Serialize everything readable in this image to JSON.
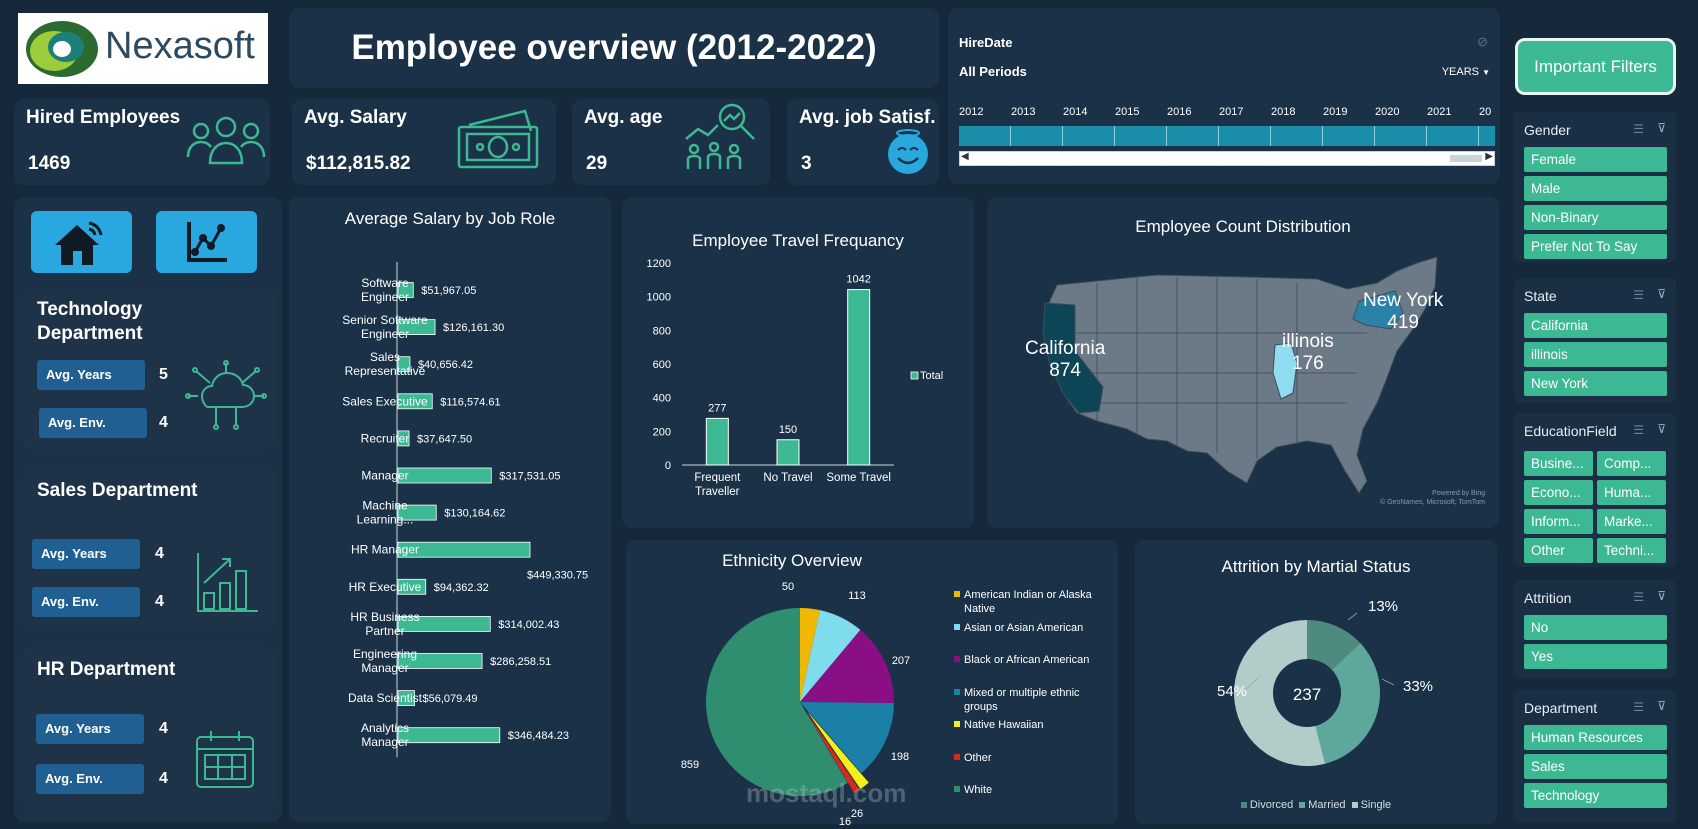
{
  "brand": {
    "name": "Nexasoft"
  },
  "header": {
    "title": "Employee overview (2012-2022)"
  },
  "kpis": [
    {
      "label": "Hired Employees",
      "value": "1469",
      "icon": "people-icon"
    },
    {
      "label": "Avg. Salary",
      "value": "$112,815.82",
      "icon": "money-icon"
    },
    {
      "label": "Avg. age",
      "value": "29",
      "icon": "age-analytics-icon"
    },
    {
      "label": "Avg. job Satisf.",
      "value": "3",
      "icon": "smile-icon"
    }
  ],
  "timeline": {
    "field": "HireDate",
    "period": "All Periods",
    "unit": "YEARS",
    "years": [
      "2012",
      "2013",
      "2014",
      "2015",
      "2016",
      "2017",
      "2018",
      "2019",
      "2020",
      "2021",
      "20"
    ]
  },
  "nav": {
    "home_icon": "home-wifi-icon",
    "chart_icon": "line-chart-icon"
  },
  "departments": [
    {
      "title_line1": "Technology",
      "title_line2": "Department",
      "years_label": "Avg. Years",
      "years": "5",
      "env_label": "Avg. Env.",
      "env": "4",
      "icon": "cloud-network-icon"
    },
    {
      "title_line1": "Sales Department",
      "title_line2": "",
      "years_label": "Avg. Years",
      "years": "4",
      "env_label": "Avg. Env.",
      "env": "4",
      "icon": "bar-growth-icon"
    },
    {
      "title_line1": "HR Department",
      "title_line2": "",
      "years_label": "Avg. Years",
      "years": "4",
      "env_label": "Avg. Env.",
      "env": "4",
      "icon": "calendar-icon"
    }
  ],
  "salary_chart": {
    "title": "Average Salary by Job Role",
    "roles": [
      {
        "line1": "Software",
        "line2": "Engineer",
        "label": "$51,967.05"
      },
      {
        "line1": "Senior Software",
        "line2": "Engineer",
        "label": "$126,161.30"
      },
      {
        "line1": "Sales",
        "line2": "Representative",
        "label": "$40,656.42"
      },
      {
        "line1": "Sales Executive",
        "line2": "",
        "label": "$116,574.61"
      },
      {
        "line1": "Recruiter",
        "line2": "",
        "label": "$37,647.50"
      },
      {
        "line1": "Manager",
        "line2": "",
        "label": "$317,531.05"
      },
      {
        "line1": "Machine",
        "line2": "Learning...",
        "label": "$130,164.62"
      },
      {
        "line1": "HR Manager",
        "line2": "",
        "label": "$449,330.75"
      },
      {
        "line1": "HR Executive",
        "line2": "",
        "label": "$94,362.32"
      },
      {
        "line1": "HR Business",
        "line2": "Partner",
        "label": "$314,002.43"
      },
      {
        "line1": "Engineering",
        "line2": "Manager",
        "label": "$286,258.51"
      },
      {
        "line1": "Data Scientist",
        "line2": "",
        "label": "$56,079.49"
      },
      {
        "line1": "Analytics",
        "line2": "Manager",
        "label": "$346,484.23"
      }
    ]
  },
  "travel_chart": {
    "title": "Employee Travel Frequancy",
    "legend": "Total",
    "yticks": [
      "1200",
      "1000",
      "800",
      "600",
      "400",
      "200",
      "0"
    ],
    "cats": [
      {
        "line1": "Frequent",
        "line2": "Traveller",
        "label": "277"
      },
      {
        "line1": "No Travel",
        "line2": "",
        "label": "150"
      },
      {
        "line1": "Some Travel",
        "line2": "",
        "label": "1042"
      }
    ]
  },
  "map": {
    "title": "Employee Count Distribution",
    "states": [
      {
        "name": "California",
        "count": "874"
      },
      {
        "name": "illinois",
        "count": "176"
      },
      {
        "name": "New York",
        "count": "419"
      }
    ],
    "credit1": "Powered by Bing",
    "credit2": "© GeoNames, Microsoft, TomTom"
  },
  "ethnicity_chart": {
    "title": "Ethnicity Overview",
    "slices": [
      {
        "name": "American Indian or Alaska Native",
        "line1": "American Indian or Alaska",
        "line2": "Native",
        "label": "50",
        "color": "#f0b800"
      },
      {
        "name": "Asian or Asian American",
        "line1": "Asian or Asian American",
        "line2": "",
        "label": "113",
        "color": "#7fdcec"
      },
      {
        "name": "Black or African American",
        "line1": "Black or African American",
        "line2": "",
        "label": "207",
        "color": "#8a0e86"
      },
      {
        "name": "Mixed or multiple ethnic groups",
        "line1": "Mixed or multiple ethnic",
        "line2": "groups",
        "label": "198",
        "color": "#1b7fa8"
      },
      {
        "name": "Native Hawaiian",
        "line1": "Native Hawaiian",
        "line2": "",
        "label": "26",
        "color": "#f4ee1d"
      },
      {
        "name": "Other",
        "line1": "Other",
        "line2": "",
        "label": "16",
        "color": "#d52b1e"
      },
      {
        "name": "White",
        "line1": "White",
        "line2": "",
        "label": "859",
        "color": "#2f8e6f"
      }
    ]
  },
  "attrition_chart": {
    "title": "Attrition by Martial Status",
    "center": "237",
    "slices": [
      {
        "name": "Divorced",
        "label": "13%",
        "color": "#4f8a80"
      },
      {
        "name": "Married",
        "label": "33%",
        "color": "#5ea79b"
      },
      {
        "name": "Single",
        "label": "54%",
        "color": "#b2cdc9"
      }
    ]
  },
  "filters": {
    "button": "Important Filters",
    "gender": {
      "title": "Gender",
      "items": [
        "Female",
        "Male",
        "Non-Binary",
        "Prefer Not To Say"
      ]
    },
    "state": {
      "title": "State",
      "items": [
        "California",
        "illinois",
        "New York"
      ]
    },
    "education": {
      "title": "EducationField",
      "items": [
        "Busine...",
        "Comp...",
        "Econo...",
        "Huma...",
        "Inform...",
        "Marke...",
        "Other",
        "Techni..."
      ]
    },
    "attrition": {
      "title": "Attrition",
      "items": [
        "No",
        "Yes"
      ]
    },
    "department": {
      "title": "Department",
      "items": [
        "Human Resources",
        "Sales",
        "Technology"
      ]
    }
  },
  "watermark": {
    "text": "mostaql.com"
  },
  "chart_data": [
    {
      "type": "bar",
      "title": "Average Salary by Job Role",
      "orientation": "horizontal",
      "categories": [
        "Software Engineer",
        "Senior Software Engineer",
        "Sales Representative",
        "Sales Executive",
        "Recruiter",
        "Manager",
        "Machine Learning...",
        "HR Manager",
        "HR Executive",
        "HR Business Partner",
        "Engineering Manager",
        "Data Scientist",
        "Analytics Manager"
      ],
      "values": [
        51967.05,
        126161.3,
        40656.42,
        116574.61,
        37647.5,
        317531.05,
        130164.62,
        449330.75,
        94362.32,
        314002.43,
        286258.51,
        56079.49,
        346484.23
      ],
      "color": "#3cb893"
    },
    {
      "type": "bar",
      "title": "Employee Travel Frequancy",
      "categories": [
        "Frequent Traveller",
        "No Travel",
        "Some Travel"
      ],
      "series": [
        {
          "name": "Total",
          "values": [
            277,
            150,
            1042
          ]
        }
      ],
      "ylim": [
        0,
        1200
      ],
      "legend": "right",
      "color": "#3cb893"
    },
    {
      "type": "pie",
      "title": "Ethnicity Overview",
      "categories": [
        "American Indian or Alaska Native",
        "Asian or Asian American",
        "Black or African American",
        "Mixed or multiple ethnic groups",
        "Native Hawaiian",
        "Other",
        "White"
      ],
      "values": [
        50,
        113,
        207,
        198,
        26,
        16,
        859
      ],
      "legend": "right"
    },
    {
      "type": "pie",
      "title": "Attrition by Martial Status",
      "categories": [
        "Divorced",
        "Married",
        "Single"
      ],
      "values": [
        13,
        33,
        54
      ],
      "total": 237,
      "legend": "bottom"
    }
  ]
}
